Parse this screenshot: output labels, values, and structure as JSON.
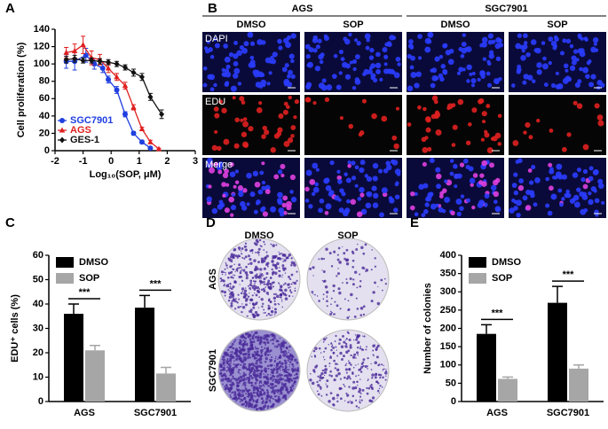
{
  "panel_labels": [
    "A",
    "B",
    "C",
    "D",
    "E"
  ],
  "panel_b": {
    "groups": [
      "AGS",
      "SGC7901"
    ],
    "columns": [
      "DMSO",
      "SOP",
      "DMSO",
      "SOP"
    ],
    "rows": [
      "DAPI",
      "EDU",
      "Merge"
    ]
  },
  "panel_d": {
    "columns": [
      "DMSO",
      "SOP"
    ],
    "rows": [
      "AGS",
      "SGC7901"
    ]
  },
  "chart_data": [
    {
      "type": "line",
      "ylabel": "Cell proliferation (%)",
      "xlabel": "Log₁₀(SOP, μM)",
      "xlim": [
        -2,
        3
      ],
      "xticks": [
        -2,
        -1,
        0,
        1,
        2,
        3
      ],
      "ylim": [
        0,
        140
      ],
      "yticks": [
        0,
        20,
        40,
        60,
        80,
        100,
        120,
        140
      ],
      "legend": "lower left",
      "series": [
        {
          "name": "SGC7901",
          "color": "#1f3fe0",
          "marker": "circle",
          "x": [
            -1.6,
            -1.3,
            -0.9,
            -0.6,
            -0.3,
            -0.1,
            0.2,
            0.5,
            0.8,
            1.1,
            1.4
          ],
          "values": [
            103,
            103,
            110,
            100,
            95,
            82,
            70,
            42,
            20,
            10,
            3
          ],
          "errors": [
            8,
            10,
            8,
            6,
            5,
            4,
            4,
            3,
            2,
            2,
            1
          ]
        },
        {
          "name": "AGS",
          "color": "#e01f1f",
          "marker": "triangle",
          "x": [
            -1.6,
            -1.3,
            -1.0,
            -0.7,
            -0.4,
            -0.1,
            0.2,
            0.5,
            0.8,
            1.1,
            1.4,
            1.7
          ],
          "values": [
            113,
            115,
            122,
            107,
            105,
            95,
            85,
            75,
            50,
            25,
            10,
            2
          ],
          "errors": [
            6,
            8,
            10,
            8,
            6,
            5,
            4,
            4,
            3,
            2,
            2,
            1
          ]
        },
        {
          "name": "GES-1",
          "color": "#111111",
          "marker": "diamond",
          "x": [
            -1.6,
            -1.3,
            -1.0,
            -0.7,
            -0.4,
            -0.1,
            0.2,
            0.5,
            0.8,
            1.1,
            1.4,
            1.8
          ],
          "values": [
            105,
            106,
            104,
            104,
            103,
            102,
            100,
            96,
            90,
            85,
            62,
            42
          ],
          "errors": [
            4,
            4,
            3,
            3,
            3,
            3,
            3,
            3,
            4,
            4,
            4,
            5
          ]
        }
      ]
    },
    {
      "type": "bar",
      "ylabel": "EDU⁺ cells (%)",
      "categories": [
        "AGS",
        "SGC7901"
      ],
      "ylim": [
        0,
        60
      ],
      "yticks": [
        0,
        10,
        20,
        30,
        40,
        50,
        60
      ],
      "legend": "upper left",
      "series": [
        {
          "name": "DMSO",
          "color": "#000000",
          "values": [
            36,
            38.5
          ],
          "errors": [
            4,
            5
          ]
        },
        {
          "name": "SOP",
          "color": "#a6a6a6",
          "values": [
            21,
            11.5
          ],
          "errors": [
            2,
            2.5
          ]
        }
      ],
      "annotations": [
        "***",
        "***"
      ]
    },
    {
      "type": "bar",
      "ylabel": "Number of colonies",
      "categories": [
        "AGS",
        "SGC7901"
      ],
      "ylim": [
        0,
        400
      ],
      "yticks": [
        0,
        50,
        100,
        150,
        200,
        250,
        300,
        350,
        400
      ],
      "legend": "upper left",
      "series": [
        {
          "name": "DMSO",
          "color": "#000000",
          "values": [
            185,
            270
          ],
          "errors": [
            25,
            45
          ]
        },
        {
          "name": "SOP",
          "color": "#a6a6a6",
          "values": [
            62,
            90
          ],
          "errors": [
            5,
            10
          ]
        }
      ],
      "annotations": [
        "***",
        "***"
      ]
    }
  ]
}
